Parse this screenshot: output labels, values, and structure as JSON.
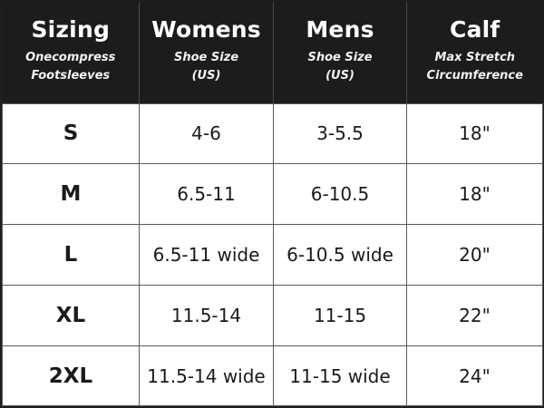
{
  "table": {
    "headers": [
      {
        "title": "Sizing",
        "sub1": "Onecompress",
        "sub2": "Footsleeves"
      },
      {
        "title": "Womens",
        "sub1": "Shoe Size",
        "sub2": "(US)"
      },
      {
        "title": "Mens",
        "sub1": "Shoe Size",
        "sub2": "(US)"
      },
      {
        "title": "Calf",
        "sub1": "Max Stretch",
        "sub2": "Circumference"
      }
    ],
    "rows": [
      {
        "size": "S",
        "womens": "4-6",
        "mens": "3-5.5",
        "calf": "18\""
      },
      {
        "size": "M",
        "womens": "6.5-11",
        "mens": "6-10.5",
        "calf": "18\""
      },
      {
        "size": "L",
        "womens": "6.5-11 wide",
        "mens": "6-10.5 wide",
        "calf": "20\""
      },
      {
        "size": "XL",
        "womens": "11.5-14",
        "mens": "11-15",
        "calf": "22\""
      },
      {
        "size": "2XL",
        "womens": "11.5-14 wide",
        "mens": "11-15 wide",
        "calf": "24\""
      }
    ]
  }
}
